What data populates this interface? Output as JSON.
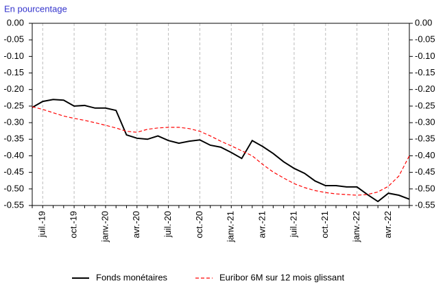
{
  "chart_data": {
    "type": "line",
    "title": "En pourcentage",
    "categories": [
      null,
      "juil.-19",
      null,
      null,
      "oct.-19",
      null,
      null,
      "janv.-20",
      null,
      null,
      "avr.-20",
      null,
      null,
      "juil.-20",
      null,
      null,
      "oct.-20",
      null,
      null,
      "janv.-21",
      null,
      null,
      "avr.-21",
      null,
      null,
      "juil.-21",
      null,
      null,
      "oct.-21",
      null,
      null,
      "janv.-22",
      null,
      null,
      "avr.-22",
      null,
      null
    ],
    "series": [
      {
        "name": "Fonds monétaires",
        "color": "#000000",
        "dash": false,
        "values": [
          -0.254,
          -0.236,
          -0.23,
          -0.232,
          -0.25,
          -0.248,
          -0.256,
          -0.256,
          -0.263,
          -0.337,
          -0.347,
          -0.35,
          -0.34,
          -0.354,
          -0.362,
          -0.356,
          -0.352,
          -0.368,
          -0.374,
          -0.39,
          -0.408,
          -0.354,
          -0.372,
          -0.393,
          -0.418,
          -0.438,
          -0.453,
          -0.476,
          -0.49,
          -0.49,
          -0.494,
          -0.494,
          -0.517,
          -0.538,
          -0.513,
          -0.519,
          -0.531
        ]
      },
      {
        "name": "Euribor 6M sur 12 mois glissant",
        "color": "#ff0000",
        "dash": true,
        "values": [
          -0.252,
          -0.26,
          -0.27,
          -0.28,
          -0.287,
          -0.293,
          -0.3,
          -0.308,
          -0.316,
          -0.326,
          -0.329,
          -0.32,
          -0.316,
          -0.314,
          -0.314,
          -0.318,
          -0.326,
          -0.34,
          -0.356,
          -0.37,
          -0.385,
          -0.4,
          -0.426,
          -0.449,
          -0.467,
          -0.484,
          -0.496,
          -0.505,
          -0.511,
          -0.515,
          -0.517,
          -0.519,
          -0.517,
          -0.509,
          -0.492,
          -0.461,
          -0.4
        ]
      }
    ],
    "ylim": [
      -0.55,
      0
    ],
    "yticks": [
      {
        "value": 0,
        "label": "0.00"
      },
      {
        "value": -0.05,
        "label": "-0.05"
      },
      {
        "value": -0.1,
        "label": "-0.10"
      },
      {
        "value": -0.15,
        "label": "-0.15"
      },
      {
        "value": -0.2,
        "label": "-0.20"
      },
      {
        "value": -0.25,
        "label": "-0.25"
      },
      {
        "value": -0.3,
        "label": "-0.30"
      },
      {
        "value": -0.35,
        "label": "-0.35"
      },
      {
        "value": -0.4,
        "label": "-0.40"
      },
      {
        "value": -0.45,
        "label": "-0.45"
      },
      {
        "value": -0.5,
        "label": "-0.50"
      },
      {
        "value": -0.55,
        "label": "-0.55"
      }
    ],
    "y2lim": [
      -0.55,
      0
    ],
    "y2ticks": [
      {
        "value": 0,
        "label": "0.00"
      },
      {
        "value": -0.05,
        "label": "-0.05"
      },
      {
        "value": -0.1,
        "label": "-0.10"
      },
      {
        "value": -0.15,
        "label": "-0.15"
      },
      {
        "value": -0.2,
        "label": "-0.20"
      },
      {
        "value": -0.25,
        "label": "-0.25"
      },
      {
        "value": -0.3,
        "label": "-0.30"
      },
      {
        "value": -0.35,
        "label": "-0.35"
      },
      {
        "value": -0.4,
        "label": "-0.40"
      },
      {
        "value": -0.45,
        "label": "-0.45"
      },
      {
        "value": -0.5,
        "label": "-0.50"
      },
      {
        "value": -0.55,
        "label": "-0.55"
      }
    ],
    "grid": true,
    "legend": "bottom"
  }
}
